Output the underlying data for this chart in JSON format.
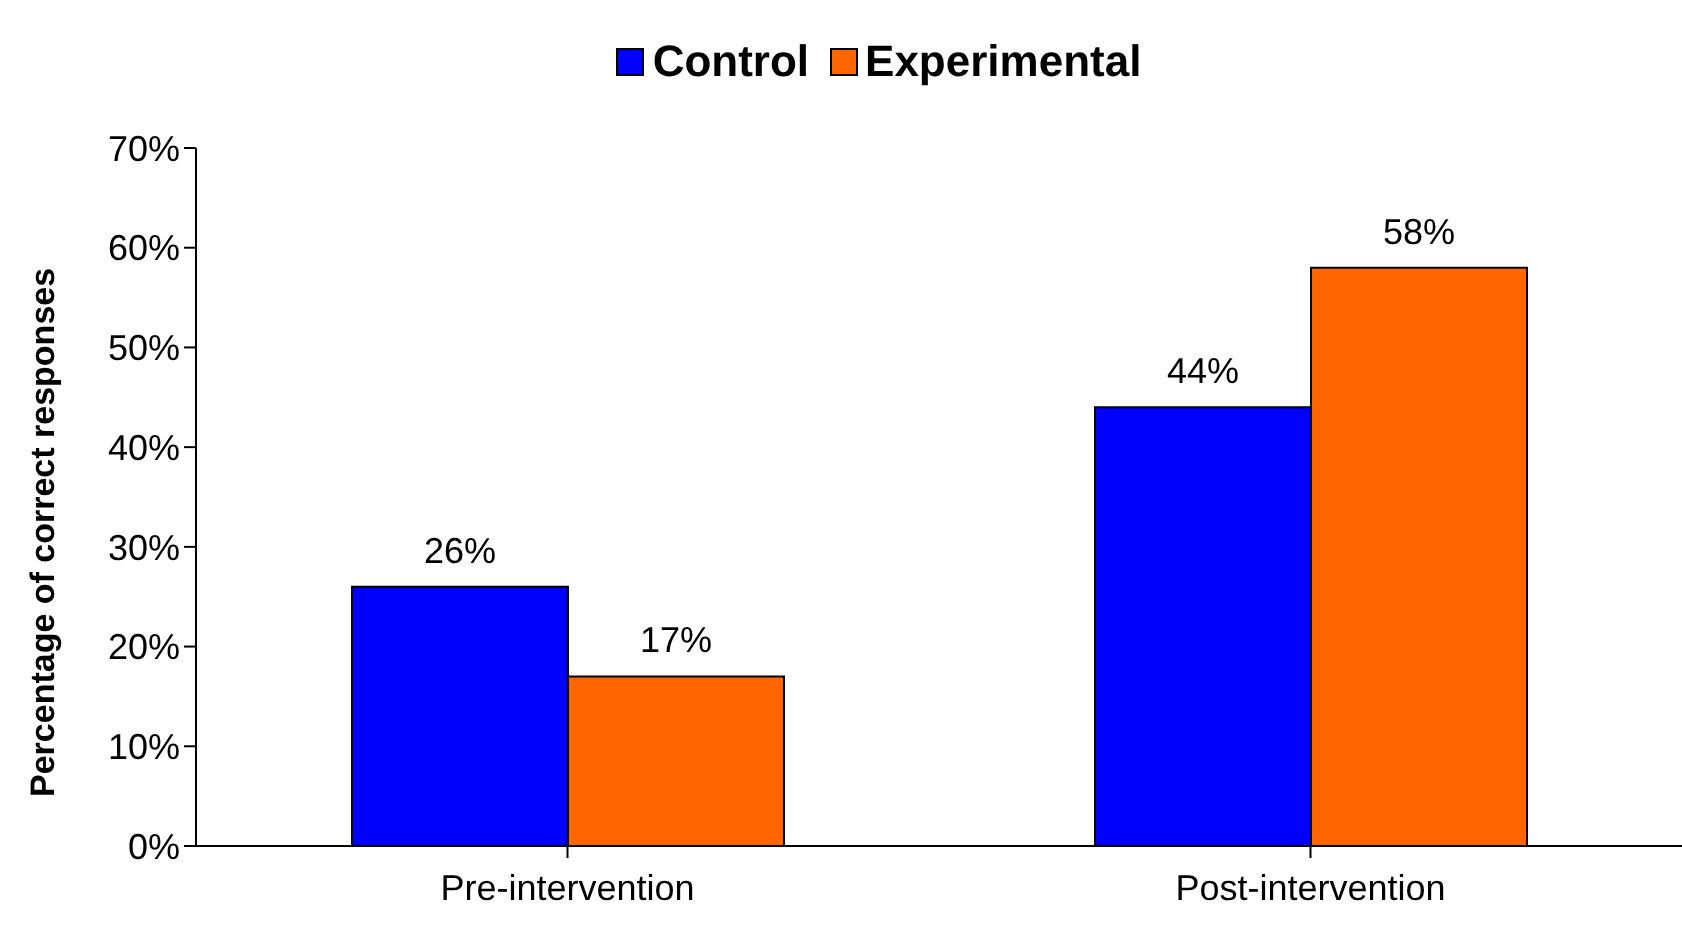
{
  "chart_data": {
    "type": "bar",
    "ylabel": "Percentage of correct responses",
    "categories": [
      "Pre-intervention",
      "Post-intervention"
    ],
    "series": [
      {
        "name": "Control",
        "color": "#0000ff",
        "values": [
          26,
          44
        ],
        "value_labels": [
          "26%",
          "44%"
        ]
      },
      {
        "name": "Experimental",
        "color": "#ff6600",
        "values": [
          17,
          58
        ],
        "value_labels": [
          "17%",
          "58%"
        ]
      }
    ],
    "ylim": [
      0,
      70
    ],
    "yticks": [
      {
        "value": 0,
        "label": "0%"
      },
      {
        "value": 10,
        "label": "10%"
      },
      {
        "value": 20,
        "label": "20%"
      },
      {
        "value": 30,
        "label": "30%"
      },
      {
        "value": 40,
        "label": "40%"
      },
      {
        "value": 50,
        "label": "50%"
      },
      {
        "value": 60,
        "label": "60%"
      },
      {
        "value": 70,
        "label": "70%"
      }
    ],
    "grid": false,
    "legend": "top"
  }
}
